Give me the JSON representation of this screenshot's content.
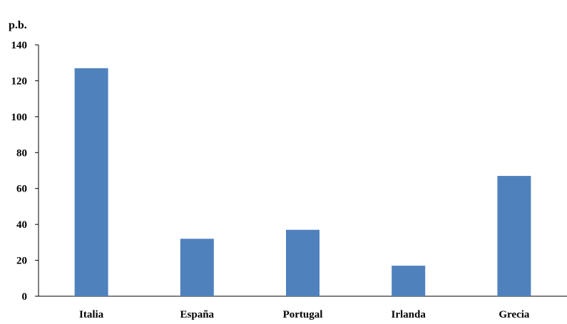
{
  "chart_data": {
    "type": "bar",
    "title": "",
    "ylabel": "p.b.",
    "xlabel": "",
    "categories": [
      "Italia",
      "España",
      "Portugal",
      "Irlanda",
      "Grecia"
    ],
    "values": [
      127,
      32,
      37,
      17,
      67
    ],
    "ylim": [
      0,
      140
    ],
    "yticks": [
      0,
      20,
      40,
      60,
      80,
      100,
      120,
      140
    ],
    "grid": false,
    "legend": "none",
    "bar_color": "#4F81BD",
    "axis_color": "#000000"
  }
}
